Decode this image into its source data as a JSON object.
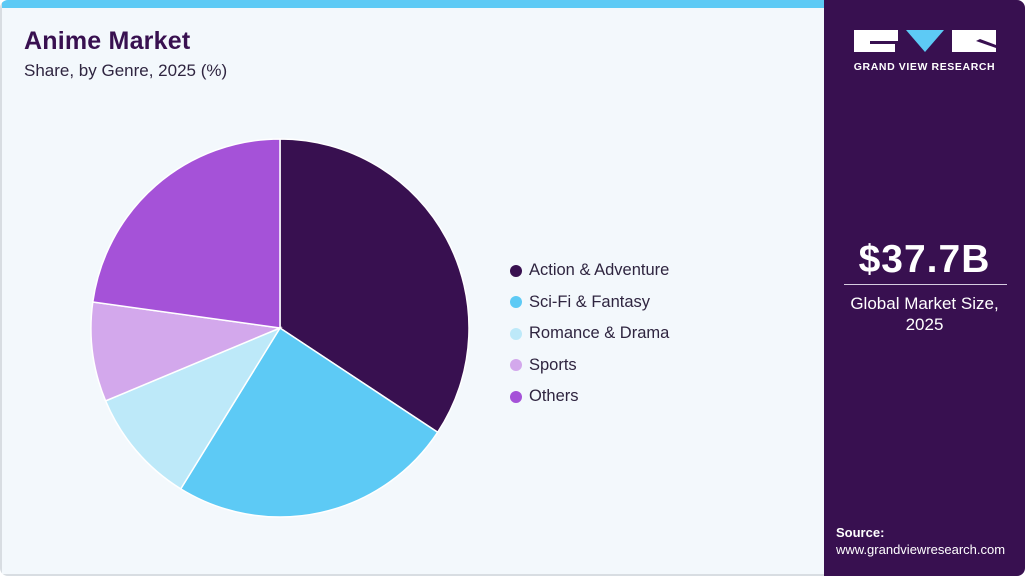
{
  "header": {
    "title": "Anime Market",
    "subtitle": "Share, by Genre, 2025 (%)"
  },
  "brand": {
    "name": "GRAND VIEW RESEARCH",
    "colors": {
      "primary": "#381050",
      "accent": "#5dcaf5"
    }
  },
  "highlight": {
    "value": "$37.7B",
    "label_line1": "Global Market Size,",
    "label_line2": "2025"
  },
  "source": {
    "title": "Source:",
    "url": "www.grandviewresearch.com"
  },
  "legend": [
    {
      "label": "Action & Adventure",
      "color": "#381050"
    },
    {
      "label": "Sci-Fi & Fantasy",
      "color": "#5dcaf5"
    },
    {
      "label": "Romance & Drama",
      "color": "#bde9f9"
    },
    {
      "label": "Sports",
      "color": "#d3a8ec"
    },
    {
      "label": "Others",
      "color": "#a552d8"
    }
  ],
  "chart_data": {
    "type": "pie",
    "title": "Anime Market",
    "subtitle": "Share, by Genre, 2025 (%)",
    "categories": [
      "Action & Adventure",
      "Sci-Fi & Fantasy",
      "Romance & Drama",
      "Sports",
      "Others"
    ],
    "values": [
      34.3,
      24.5,
      9.9,
      8.5,
      22.8
    ],
    "colors": [
      "#381050",
      "#5dcaf5",
      "#bde9f9",
      "#d3a8ec",
      "#a552d8"
    ],
    "start_angle": "12 o'clock",
    "direction": "clockwise",
    "legend_position": "right",
    "data_labels": false
  }
}
